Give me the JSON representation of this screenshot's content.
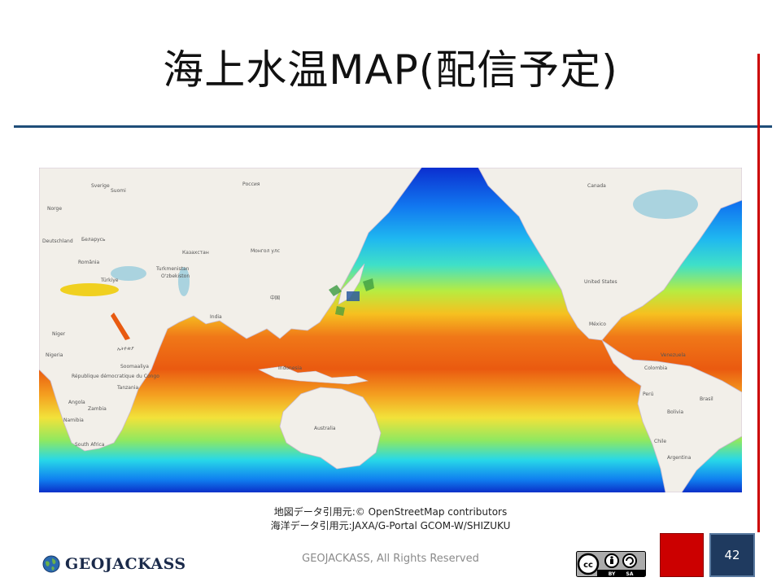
{
  "slide": {
    "title": "海上水温MAP(配信予定)",
    "page_number": "42"
  },
  "map": {
    "labels": {
      "russia": "Россия",
      "canada": "Canada",
      "kazakhstan": "Казахстан",
      "mongolia": "Монгол улс",
      "turkmenistan": "Turkmenistan",
      "uzbekistan": "O'zbekiston",
      "china": "中国",
      "india": "India",
      "deutschland": "Deutschland",
      "belarus": "Беларусь",
      "romania": "România",
      "turkiye": "Türkiye",
      "niger": "Niger",
      "nigeria": "Nigeria",
      "ethiopia": "ኢትዮጵያ",
      "somalia": "Soomaaliya",
      "drc": "République démocratique du Congo",
      "tanzania": "Tanzania",
      "angola": "Angola",
      "zambia": "Zambia",
      "south_africa": "South Africa",
      "namibia": "Namibia",
      "indonesia": "Indonesia",
      "australia": "Australia",
      "united_states": "United States",
      "mexico": "México",
      "venezuela": "Venezuela",
      "colombia": "Colombia",
      "peru": "Perú",
      "brasil": "Brasil",
      "bolivia": "Bolivia",
      "chile": "Chile",
      "argentina": "Argentina",
      "sverige": "Sverige",
      "norge": "Norge",
      "suomi": "Suomi"
    }
  },
  "credits": {
    "line1": "地図データ引用元:© OpenStreetMap contributors",
    "line2": "海洋データ引用元:JAXA/G-Portal GCOM-W/SHIZUKU"
  },
  "footer": {
    "brand": "GEOJACKASS",
    "copyright": "GEOJACKASS, All Rights Reserved",
    "license_badge": "cc-by-sa-icon",
    "license_by": "BY",
    "license_sa": "SA"
  },
  "colors": {
    "title_rule": "#1f4e79",
    "side_rule": "#cc0000",
    "page_box": "#1f3a5f",
    "red_box": "#cc0000"
  }
}
